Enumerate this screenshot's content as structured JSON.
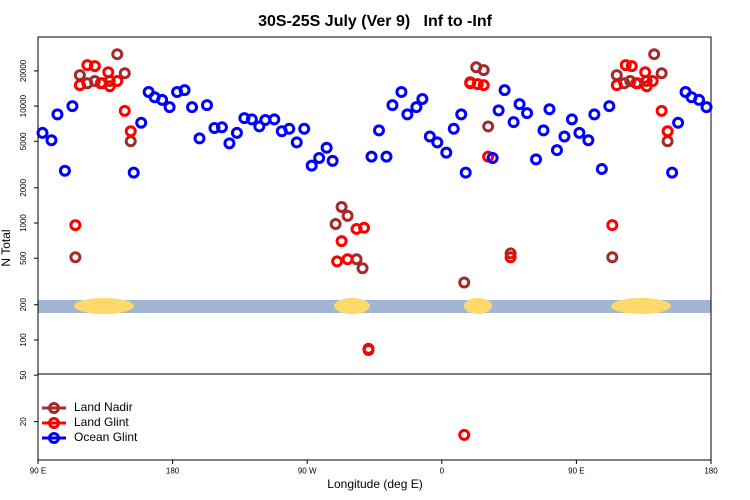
{
  "chart_data": {
    "type": "scatter",
    "title": "30S-25S July (Ver 9)   Inf to -Inf",
    "x_label": "Longitude (deg E)",
    "y_label": "N Total",
    "log_y": true,
    "legend": "lower left",
    "xlim": [
      90,
      540
    ],
    "ylim": [
      9.4,
      39000
    ],
    "xticks": [
      {
        "value": 90,
        "label": "90 E"
      },
      180,
      {
        "value": 270,
        "label": "90 W"
      },
      {
        "value": 360,
        "label": "0"
      },
      {
        "value": 450,
        "label": "90 E"
      },
      {
        "value": 540,
        "label": "180"
      }
    ],
    "yticks": [
      20,
      50,
      100,
      200,
      500,
      1000,
      2000,
      5000,
      10000,
      20000
    ],
    "series": [
      {
        "name": "Land Nadir",
        "color": "#a52a2a",
        "x": [
          115,
          118,
          123,
          128,
          133,
          138,
          143,
          148,
          152,
          289,
          293,
          297,
          303,
          307,
          311,
          375,
          379,
          383,
          388,
          391,
          406,
          474,
          477,
          482,
          486,
          490,
          497,
          502,
          507,
          511
        ],
        "values": [
          510,
          18400,
          15700,
          16400,
          15700,
          16400,
          27800,
          19100,
          5000,
          980,
          1370,
          1150,
          490,
          410,
          84,
          310,
          16000,
          21500,
          20300,
          6700,
          550,
          510,
          18400,
          15700,
          16400,
          15700,
          16400,
          27800,
          19100,
          5000
        ]
      },
      {
        "name": "Land Glint",
        "color": "#ff0000",
        "x": [
          115,
          118,
          123,
          128,
          132,
          137,
          138,
          143,
          148,
          152,
          290,
          293,
          297,
          303,
          308,
          311,
          379,
          384,
          388,
          391,
          406,
          474,
          477,
          483,
          487,
          491,
          496,
          497,
          501,
          507,
          511,
          375
        ],
        "values": [
          960,
          15100,
          22400,
          22000,
          15700,
          19500,
          14800,
          16400,
          9100,
          6100,
          470,
          700,
          490,
          890,
          910,
          82,
          15700,
          15400,
          15100,
          3700,
          510,
          960,
          15100,
          22400,
          22000,
          15700,
          19500,
          14800,
          16400,
          9100,
          6100,
          15.4
        ]
      },
      {
        "name": "Ocean Glint",
        "color": "#0000ff",
        "x": [
          93,
          99,
          103,
          108,
          113,
          154,
          159,
          164,
          168,
          173,
          178,
          183,
          188,
          193,
          198,
          203,
          208,
          213,
          218,
          223,
          228,
          233,
          238,
          242,
          248,
          253,
          258,
          263,
          268,
          273,
          278,
          283,
          287,
          313,
          318,
          323,
          327,
          333,
          337,
          343,
          347,
          352,
          357,
          363,
          368,
          373,
          376,
          394,
          398,
          402,
          408,
          412,
          417,
          423,
          428,
          432,
          437,
          442,
          447,
          452,
          458,
          462,
          467,
          472,
          514,
          518,
          523,
          527,
          532,
          537
        ],
        "values": [
          5900,
          5100,
          8500,
          2800,
          10000,
          2700,
          7200,
          13200,
          11900,
          11300,
          9800,
          13200,
          13700,
          9800,
          5300,
          10200,
          6500,
          6600,
          4800,
          5900,
          7900,
          7700,
          6700,
          7600,
          7700,
          6100,
          6400,
          4900,
          6400,
          3100,
          3600,
          4400,
          3400,
          3700,
          6200,
          3700,
          10200,
          13200,
          8500,
          9800,
          11500,
          5500,
          4900,
          4000,
          6400,
          8500,
          2700,
          3600,
          9200,
          13700,
          7300,
          10400,
          8700,
          3500,
          6200,
          9400,
          4200,
          5500,
          7700,
          5900,
          5100,
          8500,
          2900,
          10000,
          2700,
          7200,
          13200,
          11900,
          11300,
          9800
        ]
      }
    ]
  }
}
